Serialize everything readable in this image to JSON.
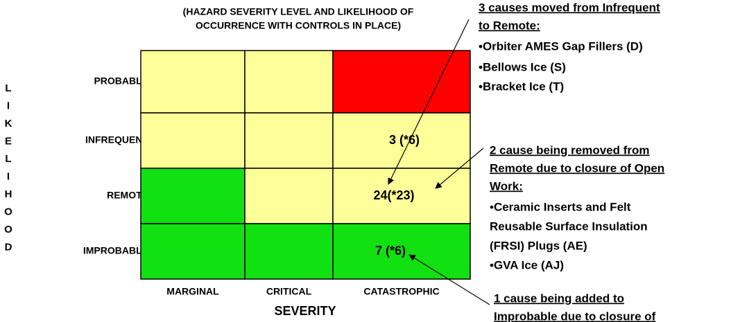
{
  "title": [
    "(HAZARD SEVERITY LEVEL AND LIKELIHOOD OF",
    "OCCURRENCE WITH CONTROLS IN PLACE)"
  ],
  "y_axis_letters": [
    "L",
    "I",
    "K",
    "E",
    "L",
    "I",
    "H",
    "O",
    "O",
    "D"
  ],
  "x_axis_title": "SEVERITY",
  "rows": [
    "PROBABLE",
    "INFREQUENT",
    "REMOTE",
    "IMPROBABLE"
  ],
  "columns": [
    "MARGINAL",
    "CRITICAL",
    "CATASTROPHIC"
  ],
  "cell_colors": [
    [
      "#ffff99",
      "#ffff99",
      "#ff0000"
    ],
    [
      "#ffff99",
      "#ffff99",
      "#ffff99"
    ],
    [
      "#11e011",
      "#ffff99",
      "#ffff99"
    ],
    [
      "#11e011",
      "#11e011",
      "#11e011"
    ]
  ],
  "cell_texts": [
    {
      "row": 1,
      "text": "3 (*6)"
    },
    {
      "row": 2,
      "text": "24(*23)"
    },
    {
      "row": 3,
      "text": "7 (*6)"
    }
  ],
  "notes": [
    {
      "heading": [
        "3 causes moved from Infrequent",
        "to Remote:"
      ],
      "items": [
        "•Orbiter AMES Gap Fillers (D)",
        "•Bellows Ice (S)",
        "•Bracket Ice (T)"
      ]
    },
    {
      "heading": [
        "2 cause being removed from",
        "Remote due to closure of Open",
        "Work:"
      ],
      "items": [
        "•Ceramic Inserts and Felt",
        "Reusable Surface Insulation",
        "(FRSI) Plugs (AE)",
        "•GVA Ice (AJ)"
      ]
    },
    {
      "heading": [
        "1 cause being added to",
        "Improbable due to closure of"
      ],
      "items": []
    }
  ]
}
